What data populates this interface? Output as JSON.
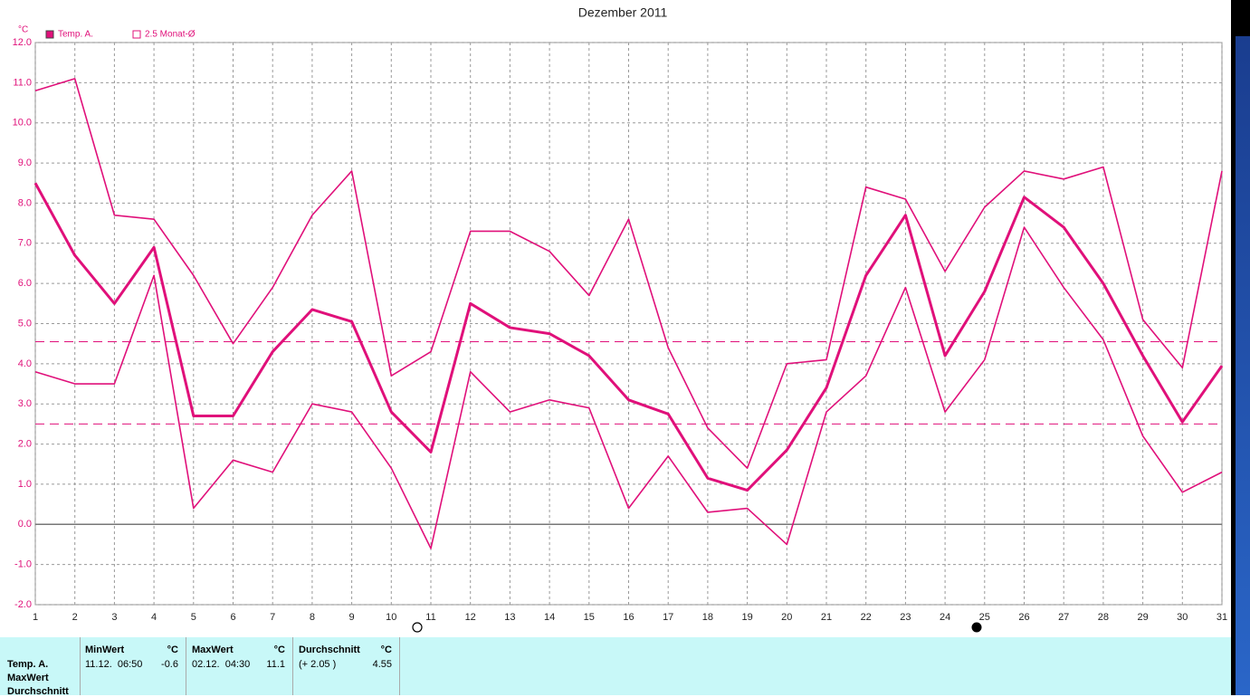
{
  "chart_data": {
    "type": "line",
    "title": "Dezember 2011",
    "y_unit": "°C",
    "x": [
      1,
      2,
      3,
      4,
      5,
      6,
      7,
      8,
      9,
      10,
      11,
      12,
      13,
      14,
      15,
      16,
      17,
      18,
      19,
      20,
      21,
      22,
      23,
      24,
      25,
      26,
      27,
      28,
      29,
      30,
      31
    ],
    "xlim": [
      1,
      31
    ],
    "xticks": [
      1,
      2,
      3,
      4,
      5,
      6,
      7,
      8,
      9,
      10,
      11,
      12,
      13,
      14,
      15,
      16,
      17,
      18,
      19,
      20,
      21,
      22,
      23,
      24,
      25,
      26,
      27,
      28,
      29,
      30,
      31
    ],
    "ylim": [
      -2,
      12
    ],
    "yticks": [
      {
        "value": -2,
        "label": "-2.0"
      },
      {
        "value": -1,
        "label": "-1.0"
      },
      {
        "value": 0,
        "label": "0.0"
      },
      {
        "value": 1,
        "label": "1.0"
      },
      {
        "value": 2,
        "label": "2.0"
      },
      {
        "value": 3,
        "label": "3.0"
      },
      {
        "value": 4,
        "label": "4.0"
      },
      {
        "value": 5,
        "label": "5.0"
      },
      {
        "value": 6,
        "label": "6.0"
      },
      {
        "value": 7,
        "label": "7.0"
      },
      {
        "value": 8,
        "label": "8.0"
      },
      {
        "value": 9,
        "label": "9.0"
      },
      {
        "value": 10,
        "label": "10.0"
      },
      {
        "value": 11,
        "label": "11.0"
      },
      {
        "value": 12,
        "label": "12.0"
      }
    ],
    "grid": true,
    "legend": "top-left",
    "series": [
      {
        "name": "Temp. A.",
        "color": "#e0107a",
        "line_width": 3,
        "values": [
          8.5,
          6.7,
          5.5,
          6.9,
          2.7,
          2.7,
          4.3,
          5.35,
          5.05,
          2.8,
          1.8,
          5.5,
          4.9,
          4.75,
          4.2,
          3.1,
          2.75,
          1.15,
          0.85,
          1.85,
          3.4,
          6.2,
          7.7,
          4.2,
          5.8,
          8.15,
          7.4,
          6.0,
          4.2,
          2.55,
          3.95
        ]
      },
      {
        "color": "#e0107a",
        "line_width": 1.6,
        "values": [
          10.8,
          11.1,
          7.7,
          7.6,
          6.2,
          4.5,
          5.9,
          7.7,
          8.8,
          3.7,
          4.3,
          7.3,
          7.3,
          6.8,
          5.7,
          7.6,
          4.4,
          2.4,
          1.4,
          4.0,
          4.1,
          8.4,
          8.1,
          6.3,
          7.9,
          8.8,
          8.6,
          8.9,
          5.1,
          3.9,
          8.8
        ]
      },
      {
        "color": "#e0107a",
        "line_width": 1.6,
        "values": [
          3.8,
          3.5,
          3.5,
          6.2,
          0.4,
          1.6,
          1.3,
          3.0,
          2.8,
          1.4,
          -0.6,
          3.8,
          2.8,
          3.1,
          2.9,
          0.4,
          1.7,
          0.3,
          0.4,
          -0.5,
          2.8,
          3.7,
          5.9,
          2.8,
          4.1,
          7.4,
          5.9,
          4.6,
          2.2,
          0.8,
          1.3
        ]
      }
    ],
    "reference_lines": {
      "name": "2.5 Monat-Ø",
      "color": "#e0107a",
      "values": [
        4.55,
        2.5
      ]
    }
  },
  "summary_table": {
    "row_labels": [
      "Temp. A.",
      "MaxWert",
      "Durchschnitt"
    ],
    "columns": [
      {
        "header": "MinWert",
        "unit": "°C",
        "time": "11.12.  06:50",
        "value": "-0.6"
      },
      {
        "header": "MaxWert",
        "unit": "°C",
        "time": "02.12.  04:30",
        "value": "11.1"
      },
      {
        "header": "Durchschnitt",
        "unit": "°C",
        "time": "(+ 2.05 )",
        "value": "4.55"
      }
    ]
  }
}
